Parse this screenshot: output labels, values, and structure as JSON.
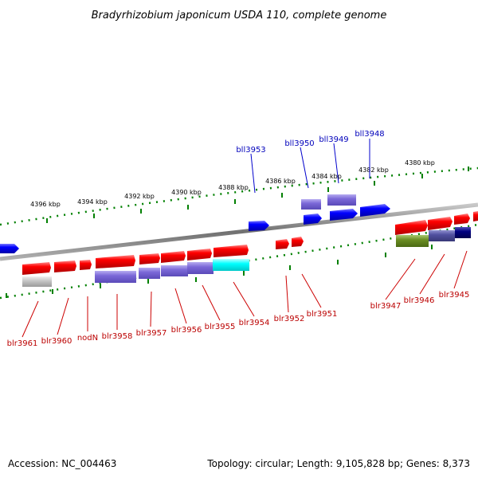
{
  "title": "Bradyrhizobium japonicum USDA 110, complete genome",
  "footer": {
    "accession": "Accession: NC_004463",
    "summary": "Topology: circular; Length: 9,105,828 bp; Genes: 8,373"
  },
  "scale_labels": [
    "4396 kbp",
    "4394 kbp",
    "4392 kbp",
    "4390 kbp",
    "4388 kbp",
    "4386 kbp",
    "4384 kbp",
    "4382 kbp",
    "4380 kbp"
  ],
  "top_gene_labels": [
    "bll3953",
    "bll3950",
    "bll3949",
    "bll3948"
  ],
  "bottom_gene_labels": [
    "blr3961",
    "blr3960",
    "nodN",
    "blr3958",
    "blr3957",
    "blr3956",
    "blr3955",
    "blr3954",
    "blr3952",
    "blr3951",
    "blr3947",
    "blr3946",
    "blr3945"
  ],
  "colors": {
    "forward_gene": "#ff0000",
    "reverse_gene": "#0000ff",
    "feature_purple": "#7b68d8",
    "feature_cyan": "#00ffff",
    "feature_olive": "#6b8e23",
    "feature_navy": "#000080",
    "feature_grey": "#c8c8c8",
    "tick_green": "#008000",
    "backbone": "#888888"
  }
}
